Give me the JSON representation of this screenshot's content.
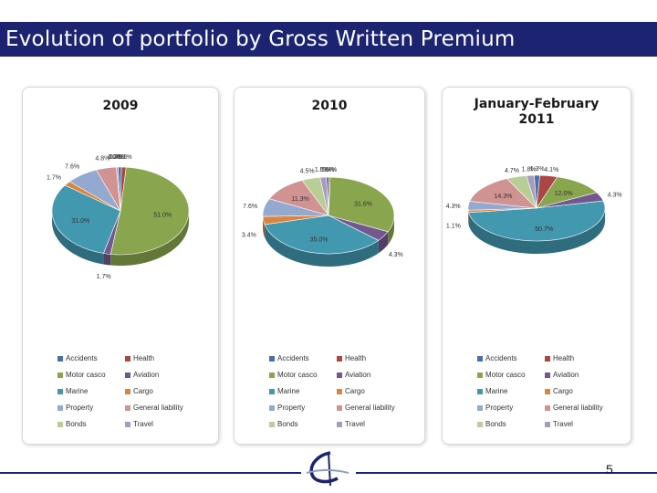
{
  "slide": {
    "title": "Evolution of portfolio by Gross Written Premium",
    "page_number": "5"
  },
  "chart_data": [
    {
      "type": "pie",
      "title": "2009",
      "legend_position": "bottom",
      "slices": [
        {
          "label": "Accidents",
          "value": 0.8,
          "display": "0.8%",
          "color": "#4572a7"
        },
        {
          "label": "Health",
          "value": 1.1,
          "display": "1.1%",
          "color": "#aa4643"
        },
        {
          "label": "Motor casco",
          "value": 51.0,
          "display": "51.0%",
          "color": "#89a54e"
        },
        {
          "label": "Aviation",
          "value": 1.7,
          "display": "1.7%",
          "color": "#71588f"
        },
        {
          "label": "Marine",
          "value": 31.0,
          "display": "31.0%",
          "color": "#4198af"
        },
        {
          "label": "Cargo",
          "value": 1.7,
          "display": "1.7%",
          "color": "#db843d"
        },
        {
          "label": "Property",
          "value": 7.6,
          "display": "7.6%",
          "color": "#93a9cf"
        },
        {
          "label": "General liability",
          "value": 4.8,
          "display": "4.8%",
          "color": "#d19392"
        },
        {
          "label": "Bonds",
          "value": 0.0,
          "display": "0.0%",
          "color": "#b9cd96"
        },
        {
          "label": "Travel",
          "value": 0.4,
          "display": "0.4%",
          "color": "#a99bbd"
        }
      ]
    },
    {
      "type": "pie",
      "title": "2010",
      "legend_position": "bottom",
      "slices": [
        {
          "label": "Accidents",
          "value": 0.6,
          "display": "0.6%",
          "color": "#4572a7"
        },
        {
          "label": "Health",
          "value": 0.4,
          "display": "0.4%",
          "color": "#aa4643"
        },
        {
          "label": "Motor casco",
          "value": 31.6,
          "display": "31.6%",
          "color": "#89a54e"
        },
        {
          "label": "Aviation",
          "value": 4.3,
          "display": "4.3%",
          "color": "#71588f"
        },
        {
          "label": "Marine",
          "value": 35.0,
          "display": "35.0%",
          "color": "#4198af"
        },
        {
          "label": "Cargo",
          "value": 3.4,
          "display": "3.4%",
          "color": "#db843d"
        },
        {
          "label": "Property",
          "value": 7.6,
          "display": "7.6%",
          "color": "#93a9cf"
        },
        {
          "label": "General liability",
          "value": 11.3,
          "display": "11.3%",
          "color": "#d19392"
        },
        {
          "label": "Bonds",
          "value": 4.5,
          "display": "4.5%",
          "color": "#b9cd96"
        },
        {
          "label": "Travel",
          "value": 1.5,
          "display": "1.5%",
          "color": "#a99bbd"
        }
      ]
    },
    {
      "type": "pie",
      "title": "January-February 2011",
      "legend_position": "bottom",
      "slices": [
        {
          "label": "Accidents",
          "value": 1.3,
          "display": "1.3%",
          "color": "#4572a7"
        },
        {
          "label": "Health",
          "value": 4.1,
          "display": "4.1%",
          "color": "#aa4643"
        },
        {
          "label": "Motor casco",
          "value": 12.0,
          "display": "12.0%",
          "color": "#89a54e"
        },
        {
          "label": "Aviation",
          "value": 4.3,
          "display": "4.3%",
          "color": "#71588f"
        },
        {
          "label": "Marine",
          "value": 50.7,
          "display": "50.7%",
          "color": "#4198af"
        },
        {
          "label": "Cargo",
          "value": 1.1,
          "display": "1.1%",
          "color": "#db843d"
        },
        {
          "label": "Property",
          "value": 4.3,
          "display": "4.3%",
          "color": "#93a9cf"
        },
        {
          "label": "General liability",
          "value": 14.3,
          "display": "14.3%",
          "color": "#d19392"
        },
        {
          "label": "Bonds",
          "value": 4.7,
          "display": "4.7%",
          "color": "#b9cd96"
        },
        {
          "label": "Travel",
          "value": 1.8,
          "display": "1.8%",
          "color": "#a99bbd"
        }
      ]
    }
  ]
}
